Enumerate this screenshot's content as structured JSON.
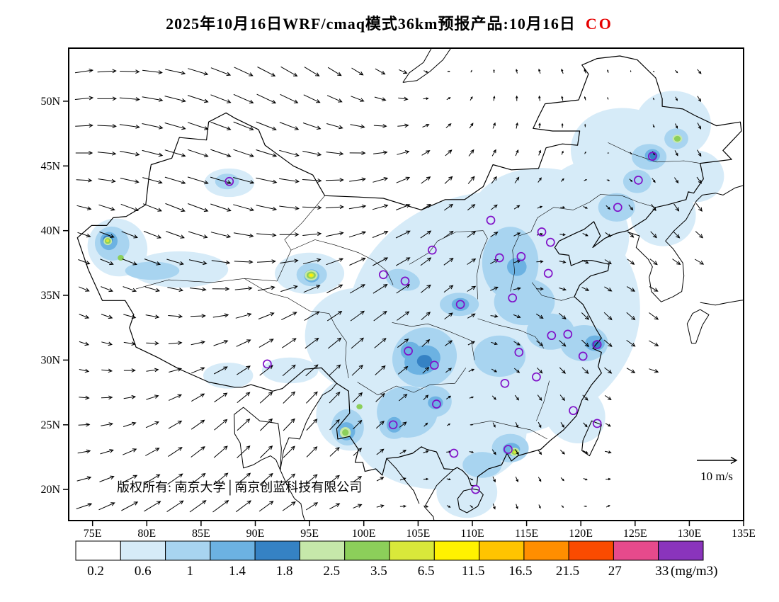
{
  "title": {
    "prefix": "2025年10月16日WRF/cmaq模式36km预报产品:10月16日",
    "pollutant": "CO"
  },
  "axes": {
    "lat_labels": [
      "50N",
      "45N",
      "40N",
      "35N",
      "30N",
      "25N",
      "20N"
    ],
    "lat_values": [
      50,
      45,
      40,
      35,
      30,
      25,
      20
    ],
    "lon_labels": [
      "75E",
      "80E",
      "85E",
      "90E",
      "95E",
      "100E",
      "105E",
      "110E",
      "115E",
      "120E",
      "125E",
      "130E",
      "135E"
    ],
    "lon_values": [
      75,
      80,
      85,
      90,
      95,
      100,
      105,
      110,
      115,
      120,
      125,
      130,
      135
    ]
  },
  "annotations": {
    "copyright": "版权所有: 南京大学│南京创蓝科技有限公司",
    "wind_reference_label": "10 m/s"
  },
  "colorbar": {
    "labels": [
      "0.2",
      "0.6",
      "1",
      "1.4",
      "1.8",
      "2.5",
      "3.5",
      "6.5",
      "11.5",
      "16.5",
      "21.5",
      "27",
      "33"
    ],
    "unit": "(mg/m3)",
    "colors": [
      "#ffffff",
      "#d6ebf8",
      "#a8d4f0",
      "#6cb2e2",
      "#3582c4",
      "#c6e8aa",
      "#8ccf5a",
      "#d9e83a",
      "#fff200",
      "#ffc400",
      "#ff8e00",
      "#fa4b00",
      "#e64a8c",
      "#8a34bc"
    ]
  },
  "chart_data": {
    "type": "heatmap",
    "pollutant": "CO",
    "unit": "mg/m3",
    "levels": [
      0.2,
      0.6,
      1,
      1.4,
      1.8,
      2.5,
      3.5,
      6.5,
      11.5,
      16.5,
      21.5,
      27,
      33
    ],
    "projection": {
      "lon_range": [
        72.8,
        135.0
      ],
      "lat_range": [
        17.6,
        54.1
      ]
    },
    "wind": {
      "reference_ms": 10,
      "grid_step_deg": 2.1
    },
    "stations_lonlat": [
      [
        87.6,
        43.8
      ],
      [
        126.6,
        45.75
      ],
      [
        125.3,
        43.9
      ],
      [
        123.4,
        41.8
      ],
      [
        111.7,
        40.8
      ],
      [
        116.4,
        39.9
      ],
      [
        117.2,
        39.1
      ],
      [
        114.5,
        38.0
      ],
      [
        112.5,
        37.9
      ],
      [
        117.0,
        36.7
      ],
      [
        106.3,
        38.5
      ],
      [
        101.8,
        36.6
      ],
      [
        103.8,
        36.1
      ],
      [
        108.9,
        34.3
      ],
      [
        113.7,
        34.8
      ],
      [
        117.3,
        31.9
      ],
      [
        118.8,
        32.0
      ],
      [
        121.5,
        31.2
      ],
      [
        120.2,
        30.3
      ],
      [
        114.3,
        30.6
      ],
      [
        104.1,
        30.7
      ],
      [
        106.5,
        29.6
      ],
      [
        91.1,
        29.7
      ],
      [
        113.0,
        28.2
      ],
      [
        115.9,
        28.7
      ],
      [
        106.7,
        26.6
      ],
      [
        102.7,
        25.0
      ],
      [
        119.3,
        26.1
      ],
      [
        121.5,
        25.1
      ],
      [
        113.3,
        23.1
      ],
      [
        108.3,
        22.8
      ],
      [
        110.3,
        20.0
      ]
    ],
    "field_blobs": [
      [
        112,
        33.5,
        13.5,
        9.5,
        -8,
        1
      ],
      [
        117,
        40,
        7.5,
        4.8,
        10,
        1
      ],
      [
        107,
        24.5,
        8,
        4.5,
        0,
        1
      ],
      [
        100,
        31.5,
        5.5,
        4,
        20,
        1
      ],
      [
        124.5,
        45.8,
        5.5,
        3.6,
        15,
        1
      ],
      [
        128.5,
        48.2,
        3.5,
        2.6,
        0,
        1
      ],
      [
        121,
        42.8,
        4,
        2.6,
        0,
        1
      ],
      [
        127.6,
        41.2,
        3,
        2.4,
        0,
        1
      ],
      [
        77.3,
        38.7,
        2.8,
        2.2,
        30,
        1
      ],
      [
        83,
        37,
        4.5,
        1.4,
        0,
        1
      ],
      [
        87.6,
        43.7,
        2.3,
        1.1,
        0,
        1
      ],
      [
        95,
        36.7,
        3.2,
        1.6,
        0,
        1
      ],
      [
        98.8,
        25.8,
        3.2,
        2.8,
        0,
        1
      ],
      [
        87.5,
        28.8,
        2.3,
        1.0,
        0,
        1
      ],
      [
        93.2,
        29.2,
        2.6,
        1.0,
        0,
        1
      ],
      [
        109.5,
        19.8,
        2.8,
        2.0,
        0,
        1
      ],
      [
        119.4,
        25.9,
        3.0,
        2.2,
        40,
        1
      ],
      [
        130.6,
        44.2,
        2.6,
        2.0,
        0,
        1
      ],
      [
        120.7,
        35.5,
        3.2,
        2.4,
        0,
        1
      ],
      [
        105.6,
        30.2,
        3.0,
        2.3,
        -20,
        2
      ],
      [
        113.5,
        37.5,
        2.6,
        2.8,
        0,
        2
      ],
      [
        114.8,
        34.5,
        2.8,
        1.8,
        0,
        2
      ],
      [
        120.3,
        31.3,
        2.2,
        1.4,
        0,
        2
      ],
      [
        112.5,
        30.3,
        2.4,
        1.6,
        0,
        2
      ],
      [
        104,
        26,
        2.8,
        2.0,
        0,
        2
      ],
      [
        108.8,
        34.3,
        1.8,
        0.9,
        0,
        2
      ],
      [
        103.6,
        36.2,
        1.6,
        0.8,
        15,
        2
      ],
      [
        76.8,
        39,
        1.6,
        1.3,
        30,
        2
      ],
      [
        80.5,
        36.9,
        2.5,
        0.7,
        0,
        2
      ],
      [
        95.2,
        36.6,
        1.4,
        0.9,
        0,
        2
      ],
      [
        87.4,
        43.8,
        1.1,
        0.6,
        0,
        2
      ],
      [
        126.3,
        45.7,
        1.6,
        1.0,
        0,
        2
      ],
      [
        125.2,
        43.8,
        1.3,
        0.9,
        0,
        2
      ],
      [
        123.3,
        41.8,
        1.7,
        1.1,
        0,
        2
      ],
      [
        113.5,
        23.2,
        1.7,
        1.1,
        0,
        2
      ],
      [
        106.5,
        26.8,
        1.6,
        1.2,
        0,
        2
      ],
      [
        102.8,
        25,
        1.4,
        1.1,
        0,
        2
      ],
      [
        98.5,
        24.8,
        1.5,
        1.4,
        0,
        2
      ],
      [
        117.2,
        32.2,
        2.2,
        1.4,
        0,
        2
      ],
      [
        128.8,
        47.1,
        1.1,
        0.8,
        0,
        2
      ],
      [
        110.9,
        21.9,
        1.8,
        1.0,
        0,
        2
      ],
      [
        105.4,
        30,
        1.7,
        1.1,
        -20,
        3
      ],
      [
        104.3,
        30.7,
        0.9,
        0.7,
        0,
        3
      ],
      [
        121.3,
        31.3,
        0.9,
        0.6,
        0,
        3
      ],
      [
        76.5,
        39.2,
        0.8,
        0.7,
        0,
        3
      ],
      [
        126.6,
        45.8,
        0.7,
        0.5,
        0,
        3
      ],
      [
        102.8,
        25,
        0.7,
        0.6,
        0,
        3
      ],
      [
        106.6,
        26.7,
        0.7,
        0.5,
        0,
        3
      ],
      [
        98.4,
        24.5,
        0.8,
        0.7,
        0,
        3
      ],
      [
        108.9,
        34.3,
        0.8,
        0.5,
        0,
        3
      ],
      [
        113.6,
        23.1,
        0.8,
        0.5,
        0,
        3
      ],
      [
        114.1,
        37.2,
        0.9,
        0.7,
        0,
        3
      ],
      [
        95.2,
        36.5,
        0.7,
        0.5,
        0,
        3
      ],
      [
        76.4,
        39.3,
        0.45,
        0.35,
        0,
        4
      ],
      [
        105.6,
        29.9,
        0.7,
        0.5,
        0,
        4
      ],
      [
        126.7,
        45.8,
        0.35,
        0.3,
        0,
        4
      ],
      [
        98.3,
        24.4,
        0.4,
        0.35,
        0,
        4
      ],
      [
        121.4,
        31.2,
        0.4,
        0.3,
        0,
        4
      ],
      [
        95.15,
        36.55,
        0.6,
        0.4,
        0,
        5
      ],
      [
        76.4,
        39.2,
        0.4,
        0.32,
        0,
        5
      ],
      [
        113.9,
        22.9,
        0.45,
        0.32,
        0,
        5
      ],
      [
        98.3,
        24.4,
        0.5,
        0.42,
        0,
        5
      ],
      [
        128.9,
        47.1,
        0.45,
        0.32,
        0,
        5
      ],
      [
        95.15,
        36.55,
        0.42,
        0.28,
        0,
        6
      ],
      [
        76.4,
        39.2,
        0.28,
        0.22,
        0,
        6
      ],
      [
        77.6,
        37.9,
        0.28,
        0.22,
        0,
        6
      ],
      [
        98.3,
        24.4,
        0.3,
        0.25,
        0,
        6
      ],
      [
        99.6,
        26.4,
        0.28,
        0.2,
        0,
        6
      ],
      [
        113.9,
        22.9,
        0.3,
        0.22,
        0,
        6
      ],
      [
        128.9,
        47.1,
        0.3,
        0.22,
        0,
        6
      ],
      [
        95.15,
        36.55,
        0.26,
        0.17,
        0,
        7
      ],
      [
        113.92,
        22.88,
        0.17,
        0.12,
        0,
        7
      ],
      [
        76.38,
        39.22,
        0.15,
        0.12,
        0,
        7
      ],
      [
        95.15,
        36.55,
        0.15,
        0.1,
        0,
        8
      ]
    ]
  }
}
